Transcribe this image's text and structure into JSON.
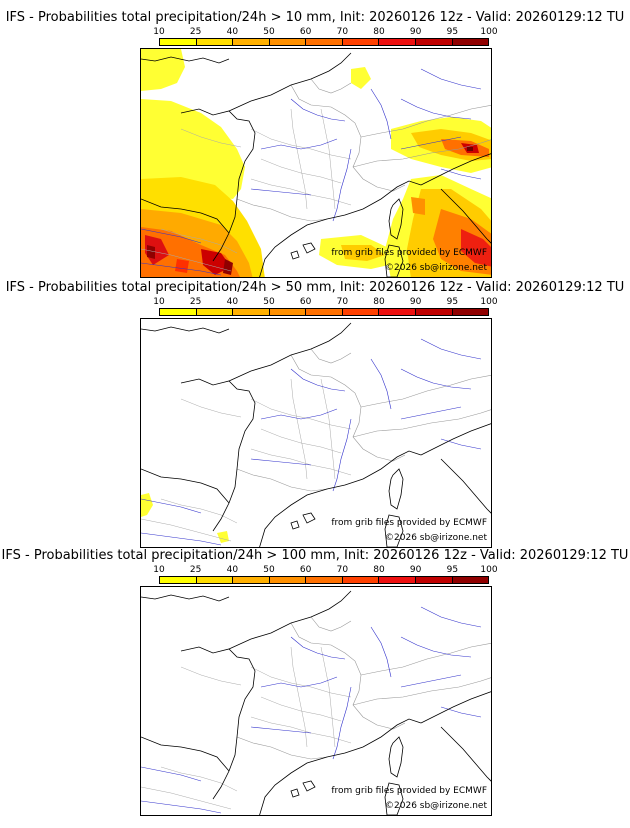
{
  "legend": {
    "ticks": [
      "10",
      "25",
      "40",
      "50",
      "60",
      "70",
      "80",
      "90",
      "95",
      "100"
    ],
    "colors": [
      "#ffff00",
      "#ffdd00",
      "#ffb000",
      "#ff9000",
      "#ff7000",
      "#ff4000",
      "#ee1010",
      "#c00000",
      "#900000",
      "#600000"
    ]
  },
  "credits": {
    "source": "from grib files provided by ECMWF",
    "copyright": "©2026 sb@irizone.net"
  },
  "panels": [
    {
      "title": "IFS - Probabilities total precipitation/24h > 10 mm, Init: 20260126 12z - Valid: 20260129:12 TU"
    },
    {
      "title": "IFS - Probabilities total precipitation/24h > 50 mm, Init: 20260126 12z - Valid: 20260129:12 TU"
    },
    {
      "title": "IFS - Probabilities total precipitation/24h > 100 mm, Init: 20260126 12z - Valid: 20260129:12 TU"
    }
  ]
}
